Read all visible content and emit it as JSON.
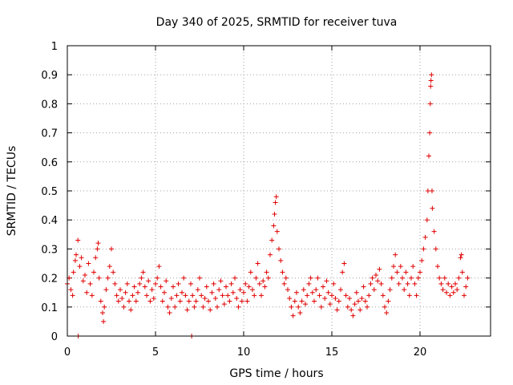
{
  "chart_data": {
    "type": "scatter",
    "title": "Day 340 of 2025, SRMTID for receiver tuva",
    "xlabel": "GPS time / hours",
    "ylabel": "SRMTID / TECUs",
    "xlim": [
      0,
      24
    ],
    "ylim": [
      0,
      1
    ],
    "xticks": [
      0,
      5,
      10,
      15,
      20
    ],
    "xtick_labels": [
      "0",
      "5",
      "10",
      "15",
      "20"
    ],
    "yticks": [
      0,
      0.1,
      0.2,
      0.3,
      0.4,
      0.5,
      0.6,
      0.7,
      0.8,
      0.9,
      1
    ],
    "ytick_labels": [
      "0",
      "0.1",
      "0.2",
      "0.3",
      "0.4",
      "0.5",
      "0.6",
      "0.7",
      "0.8",
      "0.9",
      "1"
    ],
    "grid": true,
    "marker": "+",
    "marker_color": "#e00000",
    "series": [
      {
        "name": "SRMTID",
        "color": "#e00000",
        "points": [
          [
            0.0,
            0.18
          ],
          [
            0.1,
            0.2
          ],
          [
            0.2,
            0.16
          ],
          [
            0.3,
            0.14
          ],
          [
            0.35,
            0.22
          ],
          [
            0.45,
            0.26
          ],
          [
            0.5,
            0.28
          ],
          [
            0.6,
            0.33
          ],
          [
            0.62,
            0.0
          ],
          [
            0.7,
            0.24
          ],
          [
            0.8,
            0.27
          ],
          [
            0.9,
            0.19
          ],
          [
            1.0,
            0.21
          ],
          [
            1.1,
            0.15
          ],
          [
            1.2,
            0.25
          ],
          [
            1.3,
            0.18
          ],
          [
            1.4,
            0.14
          ],
          [
            1.5,
            0.22
          ],
          [
            1.6,
            0.27
          ],
          [
            1.7,
            0.3
          ],
          [
            1.75,
            0.32
          ],
          [
            1.8,
            0.2
          ],
          [
            1.9,
            0.12
          ],
          [
            2.0,
            0.08
          ],
          [
            2.05,
            0.05
          ],
          [
            2.1,
            0.1
          ],
          [
            2.2,
            0.16
          ],
          [
            2.3,
            0.2
          ],
          [
            2.4,
            0.24
          ],
          [
            2.5,
            0.3
          ],
          [
            2.6,
            0.22
          ],
          [
            2.7,
            0.18
          ],
          [
            2.8,
            0.14
          ],
          [
            2.9,
            0.12
          ],
          [
            3.0,
            0.16
          ],
          [
            3.1,
            0.13
          ],
          [
            3.2,
            0.1
          ],
          [
            3.3,
            0.15
          ],
          [
            3.4,
            0.18
          ],
          [
            3.5,
            0.12
          ],
          [
            3.6,
            0.09
          ],
          [
            3.7,
            0.14
          ],
          [
            3.8,
            0.17
          ],
          [
            3.9,
            0.12
          ],
          [
            4.0,
            0.15
          ],
          [
            4.1,
            0.18
          ],
          [
            4.2,
            0.2
          ],
          [
            4.3,
            0.22
          ],
          [
            4.4,
            0.17
          ],
          [
            4.5,
            0.14
          ],
          [
            4.6,
            0.19
          ],
          [
            4.7,
            0.12
          ],
          [
            4.8,
            0.16
          ],
          [
            4.9,
            0.13
          ],
          [
            5.0,
            0.18
          ],
          [
            5.1,
            0.2
          ],
          [
            5.2,
            0.24
          ],
          [
            5.3,
            0.17
          ],
          [
            5.4,
            0.12
          ],
          [
            5.5,
            0.15
          ],
          [
            5.6,
            0.19
          ],
          [
            5.7,
            0.1
          ],
          [
            5.8,
            0.08
          ],
          [
            5.9,
            0.13
          ],
          [
            6.0,
            0.17
          ],
          [
            6.1,
            0.1
          ],
          [
            6.2,
            0.14
          ],
          [
            6.3,
            0.18
          ],
          [
            6.4,
            0.12
          ],
          [
            6.5,
            0.15
          ],
          [
            6.6,
            0.2
          ],
          [
            6.7,
            0.14
          ],
          [
            6.8,
            0.09
          ],
          [
            6.9,
            0.12
          ],
          [
            7.0,
            0.18
          ],
          [
            7.05,
            0.0
          ],
          [
            7.1,
            0.14
          ],
          [
            7.2,
            0.1
          ],
          [
            7.3,
            0.12
          ],
          [
            7.4,
            0.16
          ],
          [
            7.5,
            0.2
          ],
          [
            7.6,
            0.14
          ],
          [
            7.7,
            0.1
          ],
          [
            7.8,
            0.13
          ],
          [
            7.9,
            0.17
          ],
          [
            8.0,
            0.12
          ],
          [
            8.1,
            0.09
          ],
          [
            8.2,
            0.15
          ],
          [
            8.3,
            0.18
          ],
          [
            8.4,
            0.13
          ],
          [
            8.5,
            0.1
          ],
          [
            8.6,
            0.16
          ],
          [
            8.7,
            0.19
          ],
          [
            8.8,
            0.14
          ],
          [
            8.9,
            0.11
          ],
          [
            9.0,
            0.17
          ],
          [
            9.1,
            0.14
          ],
          [
            9.2,
            0.12
          ],
          [
            9.3,
            0.18
          ],
          [
            9.4,
            0.15
          ],
          [
            9.5,
            0.2
          ],
          [
            9.6,
            0.13
          ],
          [
            9.7,
            0.1
          ],
          [
            9.8,
            0.16
          ],
          [
            9.9,
            0.12
          ],
          [
            10.0,
            0.15
          ],
          [
            10.1,
            0.18
          ],
          [
            10.2,
            0.12
          ],
          [
            10.3,
            0.17
          ],
          [
            10.4,
            0.22
          ],
          [
            10.5,
            0.16
          ],
          [
            10.6,
            0.14
          ],
          [
            10.7,
            0.2
          ],
          [
            10.8,
            0.25
          ],
          [
            10.9,
            0.18
          ],
          [
            11.0,
            0.14
          ],
          [
            11.1,
            0.19
          ],
          [
            11.2,
            0.17
          ],
          [
            11.3,
            0.22
          ],
          [
            11.4,
            0.2
          ],
          [
            11.5,
            0.28
          ],
          [
            11.6,
            0.33
          ],
          [
            11.7,
            0.38
          ],
          [
            11.75,
            0.42
          ],
          [
            11.8,
            0.46
          ],
          [
            11.85,
            0.48
          ],
          [
            11.9,
            0.36
          ],
          [
            12.0,
            0.3
          ],
          [
            12.1,
            0.26
          ],
          [
            12.2,
            0.22
          ],
          [
            12.3,
            0.18
          ],
          [
            12.4,
            0.2
          ],
          [
            12.5,
            0.16
          ],
          [
            12.6,
            0.13
          ],
          [
            12.7,
            0.1
          ],
          [
            12.8,
            0.07
          ],
          [
            12.9,
            0.12
          ],
          [
            13.0,
            0.15
          ],
          [
            13.1,
            0.1
          ],
          [
            13.2,
            0.08
          ],
          [
            13.3,
            0.12
          ],
          [
            13.4,
            0.16
          ],
          [
            13.5,
            0.11
          ],
          [
            13.6,
            0.14
          ],
          [
            13.7,
            0.18
          ],
          [
            13.8,
            0.2
          ],
          [
            13.9,
            0.15
          ],
          [
            14.0,
            0.12
          ],
          [
            14.1,
            0.16
          ],
          [
            14.2,
            0.2
          ],
          [
            14.3,
            0.14
          ],
          [
            14.4,
            0.1
          ],
          [
            14.5,
            0.17
          ],
          [
            14.6,
            0.13
          ],
          [
            14.7,
            0.19
          ],
          [
            14.8,
            0.15
          ],
          [
            14.9,
            0.11
          ],
          [
            15.0,
            0.14
          ],
          [
            15.1,
            0.18
          ],
          [
            15.2,
            0.13
          ],
          [
            15.3,
            0.09
          ],
          [
            15.4,
            0.12
          ],
          [
            15.5,
            0.16
          ],
          [
            15.6,
            0.22
          ],
          [
            15.7,
            0.25
          ],
          [
            15.8,
            0.14
          ],
          [
            15.9,
            0.1
          ],
          [
            16.0,
            0.13
          ],
          [
            16.1,
            0.09
          ],
          [
            16.2,
            0.07
          ],
          [
            16.3,
            0.11
          ],
          [
            16.4,
            0.15
          ],
          [
            16.5,
            0.12
          ],
          [
            16.6,
            0.09
          ],
          [
            16.7,
            0.13
          ],
          [
            16.8,
            0.17
          ],
          [
            16.9,
            0.12
          ],
          [
            17.0,
            0.1
          ],
          [
            17.1,
            0.14
          ],
          [
            17.2,
            0.18
          ],
          [
            17.3,
            0.2
          ],
          [
            17.4,
            0.16
          ],
          [
            17.5,
            0.21
          ],
          [
            17.6,
            0.19
          ],
          [
            17.7,
            0.23
          ],
          [
            17.8,
            0.18
          ],
          [
            17.9,
            0.14
          ],
          [
            18.0,
            0.1
          ],
          [
            18.1,
            0.08
          ],
          [
            18.2,
            0.12
          ],
          [
            18.3,
            0.16
          ],
          [
            18.4,
            0.2
          ],
          [
            18.5,
            0.24
          ],
          [
            18.6,
            0.28
          ],
          [
            18.7,
            0.22
          ],
          [
            18.8,
            0.18
          ],
          [
            18.9,
            0.24
          ],
          [
            19.0,
            0.2
          ],
          [
            19.1,
            0.16
          ],
          [
            19.2,
            0.22
          ],
          [
            19.3,
            0.18
          ],
          [
            19.4,
            0.14
          ],
          [
            19.5,
            0.2
          ],
          [
            19.6,
            0.24
          ],
          [
            19.7,
            0.18
          ],
          [
            19.8,
            0.14
          ],
          [
            19.9,
            0.2
          ],
          [
            20.0,
            0.22
          ],
          [
            20.1,
            0.26
          ],
          [
            20.2,
            0.3
          ],
          [
            20.3,
            0.34
          ],
          [
            20.4,
            0.4
          ],
          [
            20.45,
            0.5
          ],
          [
            20.5,
            0.62
          ],
          [
            20.55,
            0.7
          ],
          [
            20.58,
            0.8
          ],
          [
            20.6,
            0.86
          ],
          [
            20.62,
            0.88
          ],
          [
            20.65,
            0.9
          ],
          [
            20.68,
            0.5
          ],
          [
            20.7,
            0.44
          ],
          [
            20.8,
            0.36
          ],
          [
            20.9,
            0.3
          ],
          [
            21.0,
            0.24
          ],
          [
            21.1,
            0.2
          ],
          [
            21.2,
            0.18
          ],
          [
            21.3,
            0.16
          ],
          [
            21.4,
            0.2
          ],
          [
            21.5,
            0.15
          ],
          [
            21.6,
            0.18
          ],
          [
            21.7,
            0.14
          ],
          [
            21.8,
            0.17
          ],
          [
            21.9,
            0.15
          ],
          [
            22.0,
            0.18
          ],
          [
            22.1,
            0.16
          ],
          [
            22.2,
            0.2
          ],
          [
            22.3,
            0.27
          ],
          [
            22.35,
            0.28
          ],
          [
            22.4,
            0.22
          ],
          [
            22.5,
            0.14
          ],
          [
            22.6,
            0.17
          ],
          [
            22.7,
            0.2
          ]
        ]
      }
    ]
  }
}
